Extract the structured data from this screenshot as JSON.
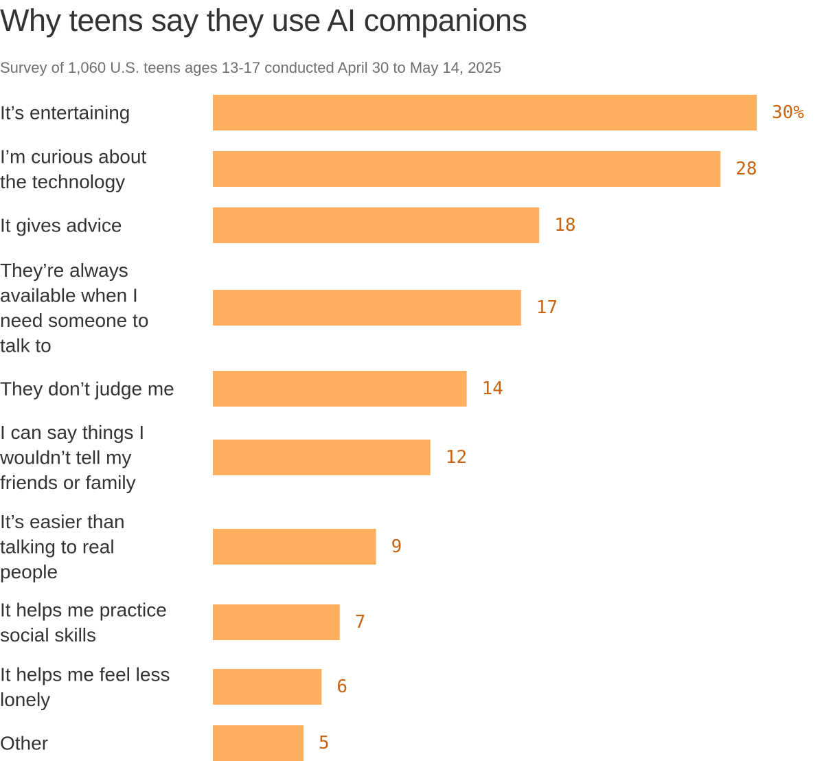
{
  "chart_data": {
    "type": "bar",
    "orientation": "horizontal",
    "title": "Why teens say they use AI companions",
    "subtitle": "Survey of 1,060 U.S. teens ages 13-17 conducted April 30 to May 14, 2025",
    "categories": [
      "It’s entertaining",
      "I’m curious about the technology",
      "It gives advice",
      "They’re always available when I need someone to talk to",
      "They don’t judge me",
      "I can say things I wouldn’t tell my friends or family",
      "It’s easier than talking to real people",
      "It helps me practice social skills",
      "It helps me feel less lonely",
      "Other"
    ],
    "category_lines": [
      [
        "It’s entertaining"
      ],
      [
        "I’m curious about",
        "the technology"
      ],
      [
        "It gives advice"
      ],
      [
        "They’re always",
        "available when I",
        "need someone to",
        "talk to"
      ],
      [
        "They don’t judge me"
      ],
      [
        "I can say things I",
        "wouldn’t tell my",
        "friends or family"
      ],
      [
        "It’s easier than",
        "talking to real",
        "people"
      ],
      [
        "It helps me practice",
        "social skills"
      ],
      [
        "It helps me feel less",
        "lonely"
      ],
      [
        "Other"
      ]
    ],
    "values": [
      30,
      28,
      18,
      17,
      14,
      12,
      9,
      7,
      6,
      5
    ],
    "value_labels": [
      "30%",
      "28",
      "18",
      "17",
      "14",
      "12",
      "9",
      "7",
      "6",
      "5"
    ],
    "unit": "%",
    "xlim": [
      0,
      30
    ],
    "grid": false,
    "legend": "none",
    "colors": {
      "bar": "#ffaf5f",
      "value_text": "#c8640f",
      "title_text": "#333333",
      "subtitle_text": "#6f6f6f"
    }
  }
}
